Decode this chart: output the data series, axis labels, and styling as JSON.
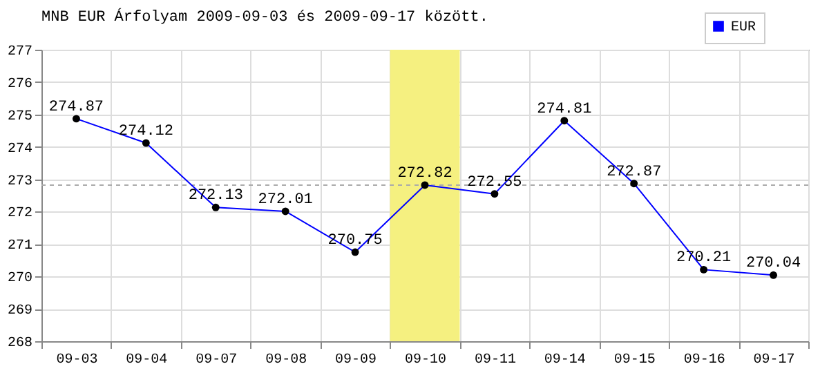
{
  "chart_data": {
    "type": "line",
    "title": "MNB EUR Árfolyam 2009-09-03 és 2009-09-17 között.",
    "categories": [
      "09-03",
      "09-04",
      "09-07",
      "09-08",
      "09-09",
      "09-10",
      "09-11",
      "09-14",
      "09-15",
      "09-16",
      "09-17"
    ],
    "series": [
      {
        "name": "EUR",
        "color": "#0000ff",
        "values": [
          274.87,
          274.12,
          272.13,
          272.01,
          270.75,
          272.82,
          272.55,
          274.81,
          272.87,
          270.21,
          270.04
        ]
      }
    ],
    "ylim": [
      268,
      277
    ],
    "yticks": [
      268,
      269,
      270,
      271,
      272,
      273,
      274,
      275,
      276,
      277
    ],
    "grid": true,
    "legend": "top right",
    "marker": "circle",
    "data_labels": true,
    "ref_lines": [
      {
        "axis": "y",
        "value": 272.82,
        "color": "#aaaaaa",
        "line_style": "dashed"
      }
    ],
    "bands": [
      {
        "axis": "x",
        "from": "09-10",
        "to": "09-10",
        "color": "#f5f080"
      }
    ]
  }
}
